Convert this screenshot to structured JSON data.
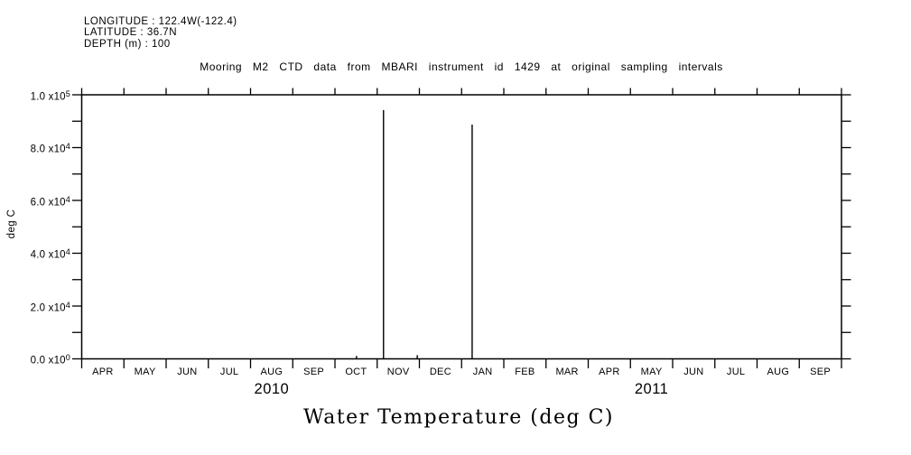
{
  "header": {
    "longitude_label": "LONGITUDE : 122.4W(-122.4)",
    "latitude_label": "LATITUDE : 36.7N",
    "depth_label": "DEPTH (m) : 100"
  },
  "chart_data": {
    "type": "line",
    "title": "Mooring M2 CTD data from MBARI instrument id 1429 at original sampling intervals",
    "bottom_title": "Water Temperature (deg C)",
    "ylabel": "deg C",
    "ylim": [
      0,
      100000
    ],
    "yticks": [
      {
        "value": 0,
        "label": "0.0 x10^0"
      },
      {
        "value": 20000,
        "label": "2.0 x10^4"
      },
      {
        "value": 40000,
        "label": "4.0 x10^4"
      },
      {
        "value": 60000,
        "label": "6.0 x10^4"
      },
      {
        "value": 80000,
        "label": "8.0 x10^4"
      },
      {
        "value": 100000,
        "label": "1.0 x10^5"
      }
    ],
    "y_minor_step": 10000,
    "x_axis": {
      "months": [
        "APR",
        "MAY",
        "JUN",
        "JUL",
        "AUG",
        "SEP",
        "OCT",
        "NOV",
        "DEC",
        "JAN",
        "FEB",
        "MAR",
        "APR",
        "MAY",
        "JUN",
        "JUL",
        "AUG",
        "SEP"
      ],
      "years": [
        {
          "label": "2010",
          "start_month_index": 0,
          "end_month_index": 8
        },
        {
          "label": "2011",
          "start_month_index": 9,
          "end_month_index": 17
        }
      ]
    },
    "series": [
      {
        "name": "water-temperature",
        "style": "vertical-spikes",
        "baseline_value": 0,
        "points": [
          {
            "x_month_offset": 6.51,
            "approx_date": "mid Oct 2010",
            "value": 1100
          },
          {
            "x_month_offset": 7.15,
            "approx_date": "early Nov 2010",
            "value": 94200
          },
          {
            "x_month_offset": 7.95,
            "approx_date": "late Nov 2010",
            "value": 1400
          },
          {
            "x_month_offset": 9.25,
            "approx_date": "early Jan 2011",
            "value": 88700
          }
        ]
      }
    ],
    "grid": false,
    "line_color": "#000000",
    "background": "#ffffff"
  }
}
